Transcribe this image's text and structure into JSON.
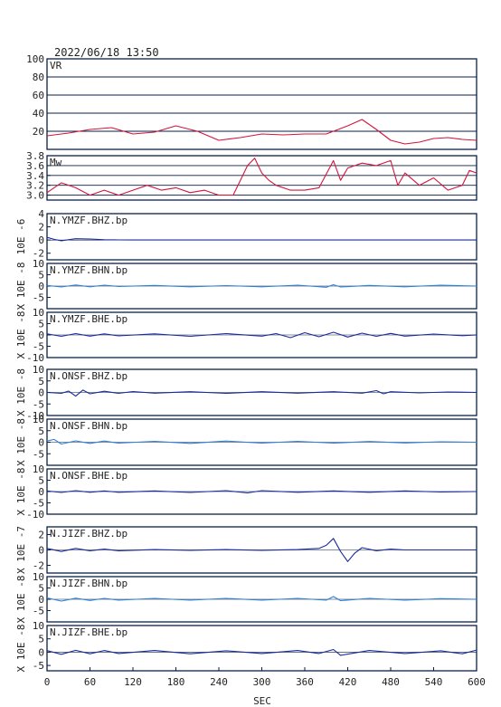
{
  "timestamp": "2022/06/18  13:50",
  "colors": {
    "frame": "#0a1f44",
    "red": "#d4143c",
    "navy": "#1a2a9c",
    "lightblue": "#2f7fd8",
    "text": "#222222"
  },
  "chart_data": [
    {
      "id": "vr",
      "type": "line",
      "label": "VR",
      "ylim": [
        0,
        100
      ],
      "yticks": [
        "20",
        "40",
        "60",
        "80",
        "100"
      ],
      "yticks_values": [
        20,
        40,
        60,
        80,
        100
      ],
      "grid": true,
      "color": "red",
      "x": [
        0,
        30,
        60,
        90,
        120,
        150,
        180,
        210,
        240,
        270,
        300,
        330,
        360,
        390,
        420,
        440,
        460,
        480,
        500,
        520,
        540,
        560,
        580,
        600
      ],
      "y": [
        15,
        18,
        22,
        24,
        17,
        19,
        26,
        20,
        10,
        13,
        17,
        16,
        17,
        17,
        26,
        33,
        22,
        10,
        6,
        8,
        12,
        13,
        11,
        10
      ]
    },
    {
      "id": "mw",
      "type": "line",
      "label": "Mw",
      "ylim": [
        2.9,
        3.8
      ],
      "yticks": [
        "3.0",
        "3.2",
        "3.4",
        "3.6",
        "3.8"
      ],
      "yticks_values": [
        3.0,
        3.2,
        3.4,
        3.6,
        3.8
      ],
      "grid": true,
      "color": "red",
      "x": [
        0,
        20,
        40,
        60,
        80,
        100,
        120,
        140,
        160,
        180,
        200,
        220,
        240,
        260,
        270,
        280,
        290,
        300,
        310,
        320,
        340,
        360,
        380,
        400,
        410,
        420,
        440,
        460,
        480,
        490,
        500,
        520,
        540,
        560,
        580,
        590,
        600
      ],
      "y": [
        3.05,
        3.25,
        3.15,
        3.0,
        3.1,
        3.0,
        3.1,
        3.2,
        3.1,
        3.15,
        3.05,
        3.1,
        3.0,
        3.0,
        3.3,
        3.6,
        3.75,
        3.45,
        3.3,
        3.2,
        3.1,
        3.1,
        3.15,
        3.7,
        3.3,
        3.55,
        3.65,
        3.6,
        3.7,
        3.2,
        3.45,
        3.2,
        3.35,
        3.1,
        3.2,
        3.5,
        3.45
      ]
    },
    {
      "id": "ymzf-bhz",
      "type": "line",
      "label": "N.YMZF.BHZ.bp",
      "exponent": "10E -6",
      "prefix": "",
      "ylim": [
        -3,
        4
      ],
      "yticks": [
        "-2",
        "0",
        "2",
        "4"
      ],
      "yticks_values": [
        -2,
        0,
        2,
        4
      ],
      "color": "navy",
      "x": [
        0,
        10,
        20,
        40,
        60,
        80,
        100,
        120,
        600
      ],
      "y": [
        0.4,
        0.1,
        -0.1,
        0.2,
        0.15,
        0.05,
        0.02,
        0,
        0
      ]
    },
    {
      "id": "ymzf-bhn",
      "type": "line",
      "label": "N.YMZF.BHN.bp",
      "exponent": "10E -8",
      "prefix": "X",
      "ylim": [
        -10,
        10
      ],
      "yticks": [
        "-5",
        "0",
        "5",
        "10"
      ],
      "yticks_values": [
        -5,
        0,
        5,
        10
      ],
      "color": "lightblue",
      "x": [
        0,
        20,
        40,
        60,
        80,
        100,
        150,
        200,
        250,
        300,
        350,
        390,
        400,
        410,
        450,
        500,
        550,
        600
      ],
      "y": [
        0.3,
        -0.4,
        0.5,
        -0.3,
        0.4,
        -0.2,
        0.3,
        -0.3,
        0.2,
        -0.3,
        0.4,
        -0.5,
        0.6,
        -0.4,
        0.3,
        -0.3,
        0.4,
        0
      ]
    },
    {
      "id": "ymzf-bhe",
      "type": "line",
      "label": "N.YMZF.BHE.bp",
      "exponent": "10E -8",
      "prefix": "X",
      "ylim": [
        -10,
        10
      ],
      "yticks": [
        "-10",
        "-5",
        "0",
        "5",
        "10"
      ],
      "yticks_values": [
        -10,
        -5,
        0,
        5,
        10
      ],
      "color": "navy",
      "x": [
        0,
        20,
        40,
        60,
        80,
        100,
        150,
        200,
        250,
        300,
        320,
        340,
        360,
        380,
        400,
        420,
        440,
        460,
        480,
        500,
        540,
        580,
        600
      ],
      "y": [
        0.5,
        -0.6,
        0.6,
        -0.5,
        0.5,
        -0.4,
        0.5,
        -0.6,
        0.6,
        -0.5,
        0.6,
        -1.2,
        1.0,
        -0.8,
        1.2,
        -0.9,
        0.8,
        -0.6,
        0.7,
        -0.5,
        0.4,
        -0.3,
        0
      ]
    },
    {
      "id": "onsf-bhz",
      "type": "line",
      "label": "N.ONSF.BHZ.bp",
      "exponent": "10E -8",
      "prefix": "X",
      "ylim": [
        -10,
        10
      ],
      "yticks": [
        "-10",
        "-5",
        "0",
        "5",
        "10"
      ],
      "yticks_values": [
        -10,
        -5,
        0,
        5,
        10
      ],
      "color": "navy",
      "x": [
        0,
        20,
        30,
        40,
        50,
        60,
        80,
        100,
        120,
        150,
        200,
        250,
        300,
        350,
        400,
        440,
        460,
        470,
        480,
        520,
        560,
        600
      ],
      "y": [
        0,
        -0.4,
        0.6,
        -1.6,
        1.0,
        -0.6,
        0.5,
        -0.4,
        0.4,
        -0.3,
        0.3,
        -0.4,
        0.3,
        -0.3,
        0.3,
        -0.3,
        0.8,
        -0.6,
        0.3,
        -0.2,
        0.2,
        0
      ]
    },
    {
      "id": "onsf-bhn",
      "type": "line",
      "label": "N.ONSF.BHN.bp",
      "exponent": "10E -8",
      "prefix": "X",
      "ylim": [
        -10,
        10
      ],
      "yticks": [
        "-5",
        "0",
        "5",
        "10"
      ],
      "yticks_values": [
        -5,
        0,
        5,
        10
      ],
      "color": "lightblue",
      "x": [
        0,
        10,
        20,
        40,
        60,
        80,
        100,
        150,
        200,
        250,
        300,
        350,
        400,
        450,
        500,
        550,
        600
      ],
      "y": [
        0.5,
        1.2,
        -0.8,
        0.6,
        -0.5,
        0.5,
        -0.4,
        0.4,
        -0.5,
        0.5,
        -0.4,
        0.4,
        -0.4,
        0.3,
        -0.3,
        0.2,
        0
      ]
    },
    {
      "id": "onsf-bhe",
      "type": "line",
      "label": "N.ONSF.BHE.bp",
      "exponent": "10E -8",
      "prefix": "X",
      "ylim": [
        -10,
        10
      ],
      "yticks": [
        "-10",
        "-5",
        "0",
        "5",
        "10"
      ],
      "yticks_values": [
        -10,
        -5,
        0,
        5,
        10
      ],
      "color": "navy",
      "x": [
        0,
        20,
        40,
        60,
        80,
        100,
        150,
        200,
        250,
        280,
        300,
        350,
        400,
        450,
        500,
        550,
        600
      ],
      "y": [
        0.3,
        -0.4,
        0.4,
        -0.3,
        0.3,
        -0.3,
        0.3,
        -0.4,
        0.4,
        -0.6,
        0.4,
        -0.3,
        0.3,
        -0.3,
        0.3,
        -0.2,
        0
      ]
    },
    {
      "id": "jizf-bhz",
      "type": "line",
      "label": "N.JIZF.BHZ.bp",
      "exponent": "10E -7",
      "prefix": "X",
      "ylim": [
        -3,
        3
      ],
      "yticks": [
        "-2",
        "0",
        "2"
      ],
      "yticks_values": [
        -2,
        0,
        2
      ],
      "color": "navy",
      "x": [
        0,
        20,
        40,
        60,
        80,
        100,
        150,
        200,
        250,
        300,
        350,
        380,
        390,
        400,
        410,
        420,
        430,
        440,
        460,
        480,
        500,
        600
      ],
      "y": [
        0.2,
        -0.2,
        0.2,
        -0.1,
        0.1,
        -0.1,
        0.05,
        -0.05,
        0.05,
        -0.05,
        0.05,
        0.2,
        0.6,
        1.5,
        -0.2,
        -1.5,
        -0.4,
        0.3,
        -0.1,
        0.1,
        0,
        0
      ]
    },
    {
      "id": "jizf-bhn",
      "type": "line",
      "label": "N.JIZF.BHN.bp",
      "exponent": "10E -8",
      "prefix": "X",
      "ylim": [
        -10,
        10
      ],
      "yticks": [
        "-5",
        "0",
        "5",
        "10"
      ],
      "yticks_values": [
        -5,
        0,
        5,
        10
      ],
      "color": "lightblue",
      "x": [
        0,
        20,
        40,
        60,
        80,
        100,
        150,
        200,
        250,
        300,
        350,
        390,
        400,
        410,
        450,
        500,
        550,
        600
      ],
      "y": [
        0.6,
        -0.8,
        0.5,
        -0.5,
        0.4,
        -0.4,
        0.4,
        -0.4,
        0.4,
        -0.4,
        0.4,
        -0.4,
        1.2,
        -0.6,
        0.4,
        -0.4,
        0.3,
        0
      ]
    },
    {
      "id": "jizf-bhe",
      "type": "line",
      "label": "N.JIZF.BHE.bp",
      "exponent": "10E -8",
      "prefix": "X",
      "ylim": [
        -7,
        10
      ],
      "yticks": [
        "-5",
        "0",
        "5",
        "10"
      ],
      "yticks_values": [
        -5,
        0,
        5,
        10
      ],
      "color": "navy",
      "x": [
        0,
        20,
        40,
        60,
        80,
        100,
        150,
        200,
        250,
        300,
        350,
        380,
        400,
        410,
        450,
        500,
        550,
        580,
        600
      ],
      "y": [
        0.6,
        -0.8,
        0.7,
        -0.6,
        0.6,
        -0.5,
        0.6,
        -0.6,
        0.5,
        -0.5,
        0.6,
        -0.5,
        1.0,
        -1.2,
        0.6,
        -0.5,
        0.5,
        -0.6,
        0.8
      ]
    }
  ],
  "xaxis": {
    "label": "SEC",
    "xlim": [
      0,
      600
    ],
    "ticks": [
      "0",
      "60",
      "120",
      "180",
      "240",
      "300",
      "360",
      "420",
      "480",
      "540",
      "600"
    ],
    "tick_values": [
      0,
      60,
      120,
      180,
      240,
      300,
      360,
      420,
      480,
      540,
      600
    ]
  }
}
